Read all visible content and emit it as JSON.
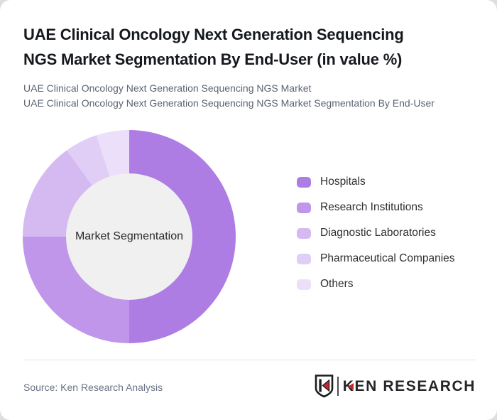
{
  "page": {
    "title_lines": [
      "UAE Clinical Oncology Next Generation Sequencing",
      "NGS Market Segmentation By End-User (in value %)"
    ],
    "subtitle_lines": [
      "UAE Clinical Oncology Next Generation Sequencing NGS Market",
      "UAE Clinical Oncology Next Generation Sequencing NGS Market Segmentation By End-User"
    ]
  },
  "chart_data": {
    "type": "pie",
    "subtype": "donut",
    "title": "UAE Clinical Oncology Next Generation Sequencing NGS Market Segmentation By End-User (in value %)",
    "center_label": "Market Segmentation",
    "unit": "% of value",
    "start_angle_deg": 0,
    "direction": "clockwise",
    "labels_on_chart": false,
    "legend_position": "right",
    "hole_color": "#f0f0f0",
    "segments": [
      {
        "label": "Hospitals",
        "value": 50,
        "color": "#ad7de4"
      },
      {
        "label": "Research Institutions",
        "value": 25,
        "color": "#bf96ea"
      },
      {
        "label": "Diagnostic Laboratories",
        "value": 15,
        "color": "#d4baf1"
      },
      {
        "label": "Pharmaceutical Companies",
        "value": 5,
        "color": "#e1cef6"
      },
      {
        "label": "Others",
        "value": 5,
        "color": "#ebdffa"
      }
    ]
  },
  "footer": {
    "source": "Source: Ken Research Analysis",
    "logo": {
      "mark_letter": "K",
      "wordmark": "KEN RESEARCH",
      "accent_color": "#c9252c",
      "mark_color": "#1d1d1f"
    }
  },
  "colors": {
    "card_bg": "#ffffff",
    "page_bg": "#dedede",
    "title": "#15181d",
    "subtitle": "#5b6473",
    "legend_text": "#2e2e2e",
    "center_text": "#2b2b2b",
    "divider": "#e5e5e5",
    "source_text": "#6a7383"
  }
}
